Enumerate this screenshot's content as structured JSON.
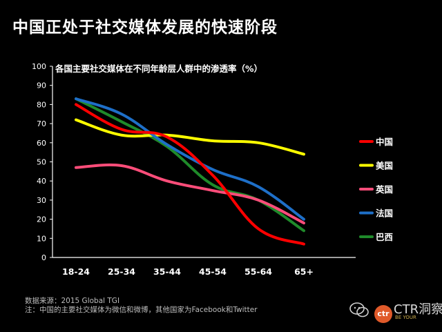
{
  "page": {
    "title": "中国正处于社交媒体发展的快速阶段",
    "source_note": "数据来源：2015 Global TGI",
    "footnote": "注：中国的主要社交媒体为微信和微博，其他国家为Facebook和Twitter",
    "watermark": {
      "logo_text": "ctr",
      "brand": "CTR洞察",
      "sub": "BE YOUR"
    }
  },
  "chart_data": {
    "type": "line",
    "title": "各国主要社交媒体在不同年龄层人群中的渗透率（%）",
    "xlabel": "",
    "ylabel": "",
    "ylim": [
      0,
      100
    ],
    "yticks": [
      0,
      10,
      20,
      30,
      40,
      50,
      60,
      70,
      80,
      90,
      100
    ],
    "categories": [
      "18-24",
      "25-34",
      "35-44",
      "45-54",
      "55-64",
      "65+"
    ],
    "legend_position": "right",
    "grid": false,
    "series": [
      {
        "name": "中国",
        "color": "#ff0000",
        "values": [
          80,
          67,
          63,
          43,
          15,
          7
        ]
      },
      {
        "name": "美国",
        "color": "#ffff00",
        "values": [
          72,
          64,
          64,
          61,
          60,
          54
        ]
      },
      {
        "name": "英国",
        "color": "#ff4d7a",
        "values": [
          47,
          48,
          40,
          35,
          30,
          18
        ]
      },
      {
        "name": "法国",
        "color": "#1e6fc8",
        "values": [
          83,
          75,
          59,
          46,
          37,
          20
        ]
      },
      {
        "name": "巴西",
        "color": "#1f8a2a",
        "values": [
          83,
          71,
          58,
          38,
          30,
          14
        ]
      }
    ]
  }
}
